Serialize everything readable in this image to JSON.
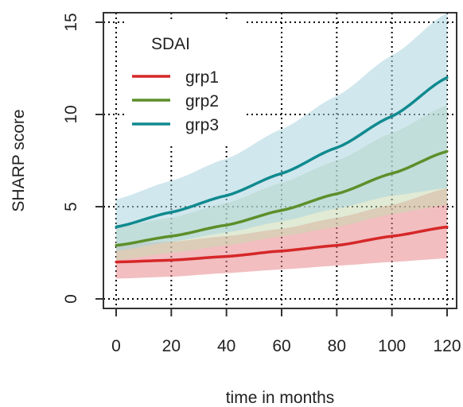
{
  "chart_data": {
    "type": "line",
    "title": "",
    "xlabel": "time in months",
    "ylabel": "SHARP score",
    "xlim": [
      0,
      120
    ],
    "ylim": [
      0,
      15
    ],
    "xticks": [
      0,
      20,
      40,
      60,
      80,
      100,
      120
    ],
    "yticks": [
      0,
      5,
      10,
      15
    ],
    "grid": "dotted",
    "legend": {
      "title": "SDAI",
      "position": "top-left",
      "entries": [
        "grp1",
        "grp2",
        "grp3"
      ]
    },
    "x": [
      0,
      20,
      40,
      60,
      80,
      100,
      120
    ],
    "series": [
      {
        "name": "grp1",
        "color": "#d62728",
        "band_color": "#e8898c",
        "values": [
          2.0,
          2.1,
          2.3,
          2.6,
          2.9,
          3.4,
          3.9
        ],
        "lower": [
          1.1,
          1.2,
          1.4,
          1.6,
          1.8,
          2.0,
          2.2
        ],
        "upper": [
          3.0,
          3.1,
          3.4,
          3.8,
          4.4,
          5.1,
          6.0
        ]
      },
      {
        "name": "grp2",
        "color": "#5c8f2a",
        "band_color": "#c9d8b0",
        "values": [
          2.9,
          3.4,
          4.0,
          4.8,
          5.7,
          6.8,
          8.0
        ],
        "lower": [
          2.1,
          2.5,
          2.9,
          3.4,
          3.9,
          4.6,
          5.1
        ],
        "upper": [
          3.9,
          4.4,
          5.2,
          6.3,
          7.5,
          9.0,
          10.5
        ]
      },
      {
        "name": "grp3",
        "color": "#0f8a8f",
        "band_color": "#a9d3df",
        "values": [
          3.9,
          4.7,
          5.6,
          6.8,
          8.2,
          9.9,
          12.0
        ],
        "lower": [
          2.6,
          3.1,
          3.6,
          4.2,
          4.9,
          5.6,
          6.0
        ],
        "upper": [
          5.4,
          6.4,
          7.6,
          9.2,
          11.0,
          13.2,
          15.5
        ]
      }
    ]
  }
}
